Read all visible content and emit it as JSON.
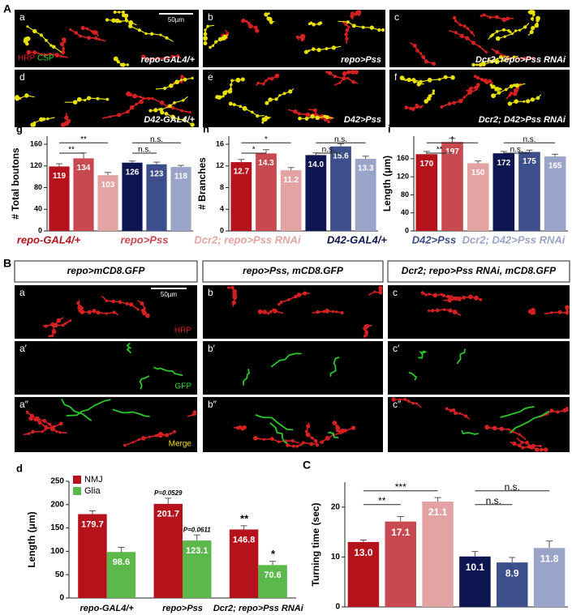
{
  "figure_A": {
    "label": "A",
    "scale": "50µm",
    "stains": [
      "HRP",
      "CSP"
    ],
    "images": [
      {
        "letter": "a",
        "genotype": "repo-GAL4/+"
      },
      {
        "letter": "b",
        "genotype": "repo>Pss"
      },
      {
        "letter": "c",
        "genotype": "Dcr2; repo>Pss RNAi"
      },
      {
        "letter": "d",
        "genotype": "D42-GAL4/+"
      },
      {
        "letter": "e",
        "genotype": "D42>Pss"
      },
      {
        "letter": "f",
        "genotype": "Dcr2; D42>Pss RNAi"
      }
    ]
  },
  "legend": [
    "repo-GAL4/+",
    "repo>Pss",
    "Dcr2; repo>Pss RNAi",
    "D42-GAL4/+",
    "D42>Pss",
    "Dcr2; D42>Pss RNAi"
  ],
  "figure_B": {
    "label": "B",
    "scale": "50µm",
    "channels": [
      "HRP",
      "GFP",
      "Merge"
    ],
    "columns": [
      {
        "header": "repo>mCD8.GFP",
        "letters": [
          "a",
          "a′",
          "a″"
        ]
      },
      {
        "header": "repo>Pss, mCD8.GFP",
        "letters": [
          "b",
          "b′",
          "b″"
        ]
      },
      {
        "header": "Dcr2; repo>Pss RNAi, mCD8.GFP",
        "letters": [
          "c",
          "c′",
          "c″"
        ]
      }
    ]
  },
  "chart_data": [
    {
      "type": "bar",
      "panel": "g",
      "ylabel": "# Total boutons",
      "values": [
        119,
        134,
        103,
        126,
        123,
        118
      ],
      "errors": [
        5,
        10,
        5,
        3,
        4,
        3
      ],
      "colors": [
        "#b5121b",
        "#c8494f",
        "#e3a3a3",
        "#0d1650",
        "#3d4f8a",
        "#9aa3c8"
      ],
      "ylim": [
        0,
        175
      ],
      "yticks": [
        0,
        40,
        80,
        120,
        160
      ],
      "significance": [
        {
          "from": 0,
          "to": 1,
          "label": "**"
        },
        {
          "from": 0,
          "to": 2,
          "label": "**"
        },
        {
          "from": 3,
          "to": 4,
          "label": "n.s."
        },
        {
          "from": 3,
          "to": 5,
          "label": "n.s."
        }
      ]
    },
    {
      "type": "bar",
      "panel": "h",
      "ylabel": "# Branches",
      "values": [
        12.7,
        14.3,
        11.2,
        14.0,
        15.6,
        13.3
      ],
      "value_labels": [
        "12.7",
        "14.3",
        "11.2",
        "14.0",
        "15.6",
        "13.3"
      ],
      "errors": [
        0.5,
        0.7,
        0.5,
        0.4,
        0.5,
        0.5
      ],
      "colors": [
        "#b5121b",
        "#c8494f",
        "#e3a3a3",
        "#0d1650",
        "#3d4f8a",
        "#9aa3c8"
      ],
      "ylim": [
        0,
        17.5
      ],
      "yticks": [
        0,
        4,
        8,
        12,
        16
      ],
      "significance": [
        {
          "from": 0,
          "to": 1,
          "label": "*"
        },
        {
          "from": 0,
          "to": 2,
          "label": "*"
        },
        {
          "from": 3,
          "to": 4,
          "label": "n.s."
        },
        {
          "from": 3,
          "to": 5,
          "label": "n.s."
        }
      ]
    },
    {
      "type": "bar",
      "panel": "i",
      "ylabel": "Length (μm)",
      "values": [
        170,
        197,
        150,
        172,
        175,
        165
      ],
      "errors": [
        6,
        8,
        5,
        4,
        4,
        5
      ],
      "colors": [
        "#b5121b",
        "#c8494f",
        "#e3a3a3",
        "#0d1650",
        "#3d4f8a",
        "#9aa3c8"
      ],
      "ylim": [
        0,
        210
      ],
      "yticks": [
        0,
        40,
        80,
        120,
        160
      ],
      "significance": [
        {
          "from": 0,
          "to": 1,
          "label": "**"
        },
        {
          "from": 0,
          "to": 2,
          "label": "*"
        },
        {
          "from": 3,
          "to": 4,
          "label": "n.s."
        },
        {
          "from": 3,
          "to": 5,
          "label": "n.s."
        }
      ]
    },
    {
      "type": "grouped_bar",
      "panel": "d",
      "ylabel": "Length (μm)",
      "legend": "top-left",
      "categories": [
        "repo-GAL4/+",
        "repo>Pss",
        "Dcr2; repo>Pss RNAi"
      ],
      "series": [
        {
          "name": "NMJ",
          "color": "#b5121b",
          "values": [
            179.7,
            201.7,
            146.8
          ],
          "errors": [
            7,
            12,
            8
          ],
          "annotations": [
            null,
            "P=0.0529",
            "**"
          ]
        },
        {
          "name": "Glia",
          "color": "#5cb84a",
          "values": [
            98.6,
            123.1,
            70.6
          ],
          "errors": [
            10,
            12,
            8
          ],
          "annotations": [
            null,
            "P=0.0611",
            "*"
          ]
        }
      ],
      "ylim": [
        0,
        250
      ],
      "yticks": [
        0,
        50,
        100,
        150,
        200,
        250
      ]
    },
    {
      "type": "bar",
      "panel": "C",
      "ylabel": "Turning time (sec)",
      "values": [
        13.0,
        17.1,
        21.1,
        10.1,
        8.9,
        11.8
      ],
      "value_labels": [
        "13.0",
        "17.1",
        "21.1",
        "10.1",
        "8.9",
        "11.8"
      ],
      "errors": [
        0.4,
        1.0,
        0.8,
        1.0,
        1.0,
        1.4
      ],
      "colors": [
        "#b5121b",
        "#c8494f",
        "#e3a3a3",
        "#0d1650",
        "#3d4f8a",
        "#9aa3c8"
      ],
      "ylim": [
        0,
        25
      ],
      "yticks": [
        0,
        10,
        20
      ],
      "significance": [
        {
          "from": 0,
          "to": 1,
          "label": "**"
        },
        {
          "from": 0,
          "to": 2,
          "label": "***"
        },
        {
          "from": 3,
          "to": 4,
          "label": "n.s."
        },
        {
          "from": 3,
          "to": 5,
          "label": "n.s."
        }
      ]
    }
  ]
}
